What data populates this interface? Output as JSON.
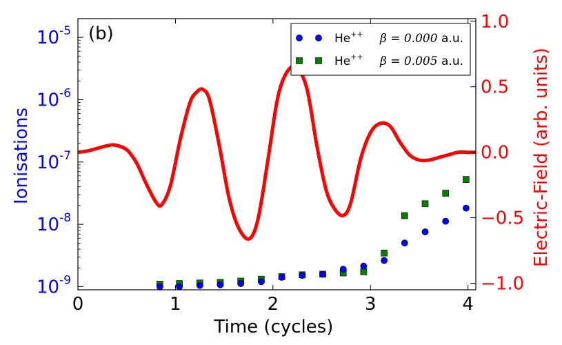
{
  "chart_data": {
    "type": "scatter",
    "panel_label": "(b)",
    "xlabel": "Time (cycles)",
    "ylabel_left": "Ionisations",
    "ylabel_right": "Electric-Field (arb. units)",
    "xlim": [
      0,
      4.08
    ],
    "ylim_left_log10": [
      -9.05,
      -4.7
    ],
    "ylim_right": [
      -1.05,
      1.02
    ],
    "x_ticks": [
      0,
      1,
      2,
      3,
      4
    ],
    "x_tick_labels": [
      "0",
      "1",
      "2",
      "3",
      "4"
    ],
    "y_left_tick_exponents": [
      -9,
      -8,
      -7,
      -6,
      -5
    ],
    "y_left_tick_base": "10",
    "y_left_tick_exponent_labels": [
      "-9",
      "-8",
      "-7",
      "-6",
      "-5"
    ],
    "y_right_ticks": [
      -1.0,
      -0.5,
      0.0,
      0.5,
      1.0
    ],
    "y_right_tick_labels": [
      "−1.0",
      "−0.5",
      "0.0",
      "0.5",
      "1.0"
    ],
    "legend_position": "upper-right",
    "colors": {
      "left_axis": "#0000ff",
      "right_axis": "#ff0000",
      "field_line": "#ff0000",
      "series_beta0": "#0000ff",
      "series_beta005": "#008000",
      "axes": "#000000"
    },
    "field_curve": {
      "name": "Electric field",
      "x": [
        0,
        0.1,
        0.2,
        0.3,
        0.38,
        0.5,
        0.6,
        0.7,
        0.8,
        0.86,
        0.95,
        1.05,
        1.15,
        1.22,
        1.28,
        1.35,
        1.45,
        1.55,
        1.65,
        1.76,
        1.85,
        1.95,
        2.05,
        2.15,
        2.25,
        2.35,
        2.45,
        2.55,
        2.65,
        2.73,
        2.8,
        2.9,
        3.0,
        3.1,
        3.2,
        3.3,
        3.4,
        3.5,
        3.6,
        3.7,
        3.8,
        3.9,
        4.0,
        4.08
      ],
      "y": [
        0.0,
        0.01,
        0.03,
        0.05,
        0.055,
        0.02,
        -0.08,
        -0.24,
        -0.38,
        -0.4,
        -0.25,
        0.1,
        0.38,
        0.46,
        0.48,
        0.4,
        0.05,
        -0.35,
        -0.58,
        -0.66,
        -0.5,
        -0.05,
        0.42,
        0.62,
        0.64,
        0.48,
        0.05,
        -0.3,
        -0.45,
        -0.48,
        -0.38,
        -0.05,
        0.15,
        0.22,
        0.2,
        0.08,
        -0.02,
        -0.06,
        -0.06,
        -0.04,
        -0.02,
        0.0,
        0.0,
        0.0
      ]
    },
    "series": [
      {
        "name": "He++ beta=0.000 a.u.",
        "legend_species": "He",
        "legend_charge": "++",
        "legend_expr": "β = 0.000",
        "legend_unit": "a.u.",
        "marker": "circle",
        "x": [
          0.84,
          1.04,
          1.25,
          1.46,
          1.67,
          1.88,
          2.09,
          2.3,
          2.51,
          2.72,
          2.93,
          3.14,
          3.35,
          3.56,
          3.77,
          3.98
        ],
        "log10_y": [
          -9.0,
          -9.0,
          -8.98,
          -8.97,
          -8.95,
          -8.92,
          -8.85,
          -8.82,
          -8.8,
          -8.72,
          -8.67,
          -8.58,
          -8.3,
          -8.12,
          -7.95,
          -7.74
        ]
      },
      {
        "name": "He++ beta=0.005 a.u.",
        "legend_species": "He",
        "legend_charge": "++",
        "legend_expr": "β = 0.005",
        "legend_unit": "a.u.",
        "marker": "square",
        "x": [
          0.84,
          1.04,
          1.25,
          1.46,
          1.67,
          1.88,
          2.09,
          2.3,
          2.51,
          2.72,
          2.93,
          3.14,
          3.35,
          3.56,
          3.77,
          3.98
        ],
        "log10_y": [
          -8.96,
          -8.95,
          -8.94,
          -8.93,
          -8.91,
          -8.88,
          -8.84,
          -8.81,
          -8.8,
          -8.78,
          -8.76,
          -8.46,
          -7.86,
          -7.67,
          -7.5,
          -7.28
        ]
      }
    ]
  }
}
